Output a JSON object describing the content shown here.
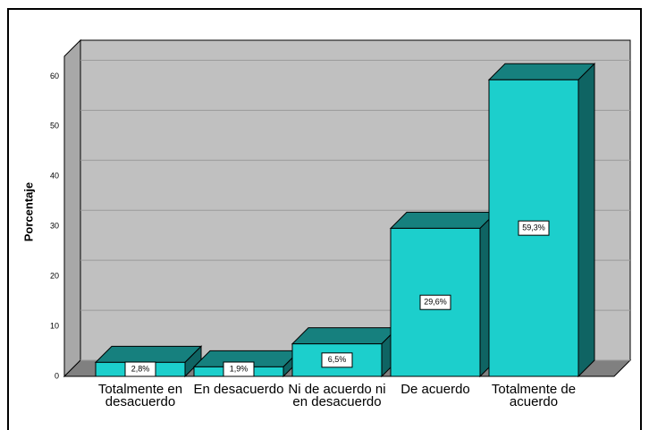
{
  "chart_data": {
    "type": "bar",
    "y_label": "Porcentaje",
    "categories": [
      "Totalmente en desacuerdo",
      "En desacuerdo",
      "Ni de acuerdo ni en desacuerdo",
      "De acuerdo",
      "Totalmente de acuerdo"
    ],
    "values": [
      2.8,
      1.9,
      6.5,
      29.6,
      59.3
    ],
    "value_labels": [
      "2,8%",
      "1,9%",
      "6,5%",
      "29,6%",
      "59,3%"
    ],
    "ylim": [
      0,
      64
    ],
    "yticks": [
      0,
      10,
      20,
      30,
      40,
      50,
      60
    ],
    "color": "#1ccfcc",
    "grid": true
  }
}
